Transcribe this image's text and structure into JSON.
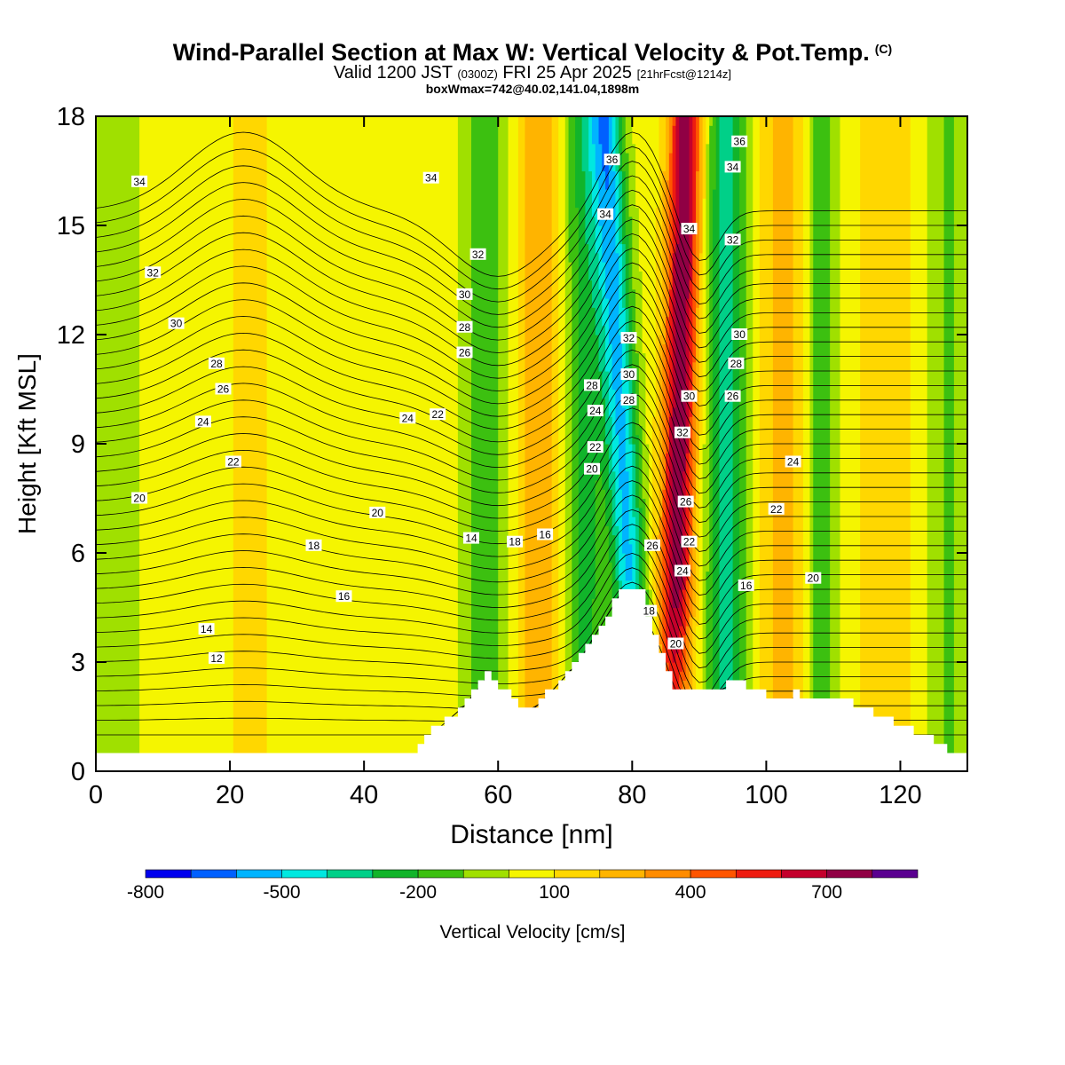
{
  "chart_data": {
    "type": "heatmap",
    "title": "Wind-Parallel Section at Max W: Vertical Velocity & Pot.Temp.",
    "copyright_mark": "(C)",
    "subtitle_main": "Valid 1200 JST",
    "subtitle_utc": "(0300Z)",
    "subtitle_date": "FRI 25 Apr 2025",
    "subtitle_run": "[21hrFcst@1214z]",
    "box_info": "boxWmax=742@40.02,141.04,1898m",
    "xlabel": "Distance [nm]",
    "ylabel": "Height [Kft MSL]",
    "xlim": [
      0,
      130
    ],
    "ylim": [
      0,
      18
    ],
    "x_ticks": [
      0,
      20,
      40,
      60,
      80,
      100,
      120
    ],
    "y_ticks": [
      0,
      3,
      6,
      9,
      12,
      15,
      18
    ],
    "colorbar": {
      "label": "Vertical Velocity [cm/s]",
      "tick_labels": [
        "-800",
        "-500",
        "-200",
        "100",
        "400",
        "700"
      ],
      "tick_values": [
        -800,
        -500,
        -200,
        100,
        400,
        700
      ],
      "levels": [
        -800,
        -700,
        -600,
        -500,
        -400,
        -300,
        -200,
        -100,
        0,
        100,
        200,
        300,
        400,
        500,
        600,
        700,
        800,
        900
      ],
      "colors": [
        "#0000ee",
        "#0060ff",
        "#00b4ff",
        "#00e8e0",
        "#00d088",
        "#11b42a",
        "#3cc010",
        "#a0e000",
        "#f5f500",
        "#ffd700",
        "#ffb400",
        "#ff8c00",
        "#ff5500",
        "#ee1c10",
        "#c4002c",
        "#900044",
        "#5a0090"
      ]
    },
    "vertical_velocity_features": [
      {
        "x_center": 3,
        "half_width": 4,
        "w_cm_s": -80
      },
      {
        "x_center": 23,
        "half_width": 7,
        "w_cm_s": 70
      },
      {
        "x_center": 45,
        "half_width": 6,
        "w_cm_s": 60
      },
      {
        "x_center": 58,
        "half_width": 3,
        "w_cm_s": -220
      },
      {
        "x_center": 66,
        "half_width": 3,
        "w_cm_s": 250
      },
      {
        "x_center": 73,
        "half_width": 3,
        "w_cm_s": -280
      },
      {
        "x_center_bottom": 81,
        "x_center_top": 76,
        "half_width": 2.5,
        "w_cm_s": -560
      },
      {
        "x_center_bottom": 86,
        "x_center_top": 88,
        "half_width": 2.5,
        "w_cm_s": 742
      },
      {
        "x_center": 94,
        "half_width": 3,
        "w_cm_s": -380
      },
      {
        "x_center": 103,
        "half_width": 4,
        "w_cm_s": 200
      },
      {
        "x_center": 108,
        "half_width": 2.5,
        "w_cm_s": -230
      },
      {
        "x_center": 118,
        "half_width": 4,
        "w_cm_s": 160
      },
      {
        "x_center": 127,
        "half_width": 3,
        "w_cm_s": -150
      }
    ],
    "terrain_profile": {
      "x": [
        0,
        46,
        50,
        55,
        58,
        64,
        67,
        72,
        78,
        81,
        84,
        86,
        90,
        94,
        98,
        101,
        104,
        112,
        118,
        124,
        128,
        130
      ],
      "height_kft": [
        0.3,
        0.3,
        1.0,
        1.8,
        2.5,
        1.5,
        2.0,
        3.0,
        4.8,
        4.8,
        3.0,
        2.0,
        2.0,
        2.3,
        2.2,
        1.8,
        2.0,
        1.8,
        1.3,
        0.8,
        0.3,
        0.3
      ]
    },
    "theta_contour_labels": [
      {
        "text": "34",
        "x": 6.5,
        "y": 16.2
      },
      {
        "text": "32",
        "x": 8.5,
        "y": 13.7
      },
      {
        "text": "30",
        "x": 12,
        "y": 12.3
      },
      {
        "text": "28",
        "x": 18,
        "y": 11.2
      },
      {
        "text": "26",
        "x": 19,
        "y": 10.5
      },
      {
        "text": "24",
        "x": 16,
        "y": 9.6
      },
      {
        "text": "22",
        "x": 20.5,
        "y": 8.5
      },
      {
        "text": "20",
        "x": 6.5,
        "y": 7.5
      },
      {
        "text": "18",
        "x": 32.5,
        "y": 6.2
      },
      {
        "text": "16",
        "x": 37,
        "y": 4.8
      },
      {
        "text": "14",
        "x": 16.5,
        "y": 3.9
      },
      {
        "text": "12",
        "x": 18,
        "y": 3.1
      },
      {
        "text": "34",
        "x": 50,
        "y": 16.3
      },
      {
        "text": "32",
        "x": 57,
        "y": 14.2
      },
      {
        "text": "30",
        "x": 55,
        "y": 13.1
      },
      {
        "text": "28",
        "x": 55,
        "y": 12.2
      },
      {
        "text": "26",
        "x": 55,
        "y": 11.5
      },
      {
        "text": "24",
        "x": 46.5,
        "y": 9.7
      },
      {
        "text": "22",
        "x": 51,
        "y": 9.8
      },
      {
        "text": "20",
        "x": 42,
        "y": 7.1
      },
      {
        "text": "14",
        "x": 56,
        "y": 6.4
      },
      {
        "text": "18",
        "x": 62.5,
        "y": 6.3
      },
      {
        "text": "16",
        "x": 67,
        "y": 6.5
      },
      {
        "text": "36",
        "x": 77,
        "y": 16.8
      },
      {
        "text": "34",
        "x": 76,
        "y": 15.3
      },
      {
        "text": "28",
        "x": 74,
        "y": 10.6
      },
      {
        "text": "24",
        "x": 74.5,
        "y": 9.9
      },
      {
        "text": "22",
        "x": 74.5,
        "y": 8.9
      },
      {
        "text": "20",
        "x": 74,
        "y": 8.3
      },
      {
        "text": "32",
        "x": 79.5,
        "y": 11.9
      },
      {
        "text": "30",
        "x": 79.5,
        "y": 10.9
      },
      {
        "text": "28",
        "x": 79.5,
        "y": 10.2
      },
      {
        "text": "26",
        "x": 83,
        "y": 6.2
      },
      {
        "text": "18",
        "x": 82.5,
        "y": 4.4
      },
      {
        "text": "20",
        "x": 86.5,
        "y": 3.5
      },
      {
        "text": "34",
        "x": 88.5,
        "y": 14.9
      },
      {
        "text": "30",
        "x": 88.5,
        "y": 10.3
      },
      {
        "text": "32",
        "x": 87.5,
        "y": 9.3
      },
      {
        "text": "26",
        "x": 88,
        "y": 7.4
      },
      {
        "text": "22",
        "x": 88.5,
        "y": 6.3
      },
      {
        "text": "24",
        "x": 87.5,
        "y": 5.5
      },
      {
        "text": "36",
        "x": 96,
        "y": 17.3
      },
      {
        "text": "34",
        "x": 95,
        "y": 16.6
      },
      {
        "text": "32",
        "x": 95,
        "y": 14.6
      },
      {
        "text": "30",
        "x": 96,
        "y": 12.0
      },
      {
        "text": "28",
        "x": 95.5,
        "y": 11.2
      },
      {
        "text": "26",
        "x": 95,
        "y": 10.3
      },
      {
        "text": "24",
        "x": 104,
        "y": 8.5
      },
      {
        "text": "22",
        "x": 101.5,
        "y": 7.2
      },
      {
        "text": "16",
        "x": 97,
        "y": 5.1
      },
      {
        "text": "20",
        "x": 107,
        "y": 5.3
      }
    ]
  }
}
